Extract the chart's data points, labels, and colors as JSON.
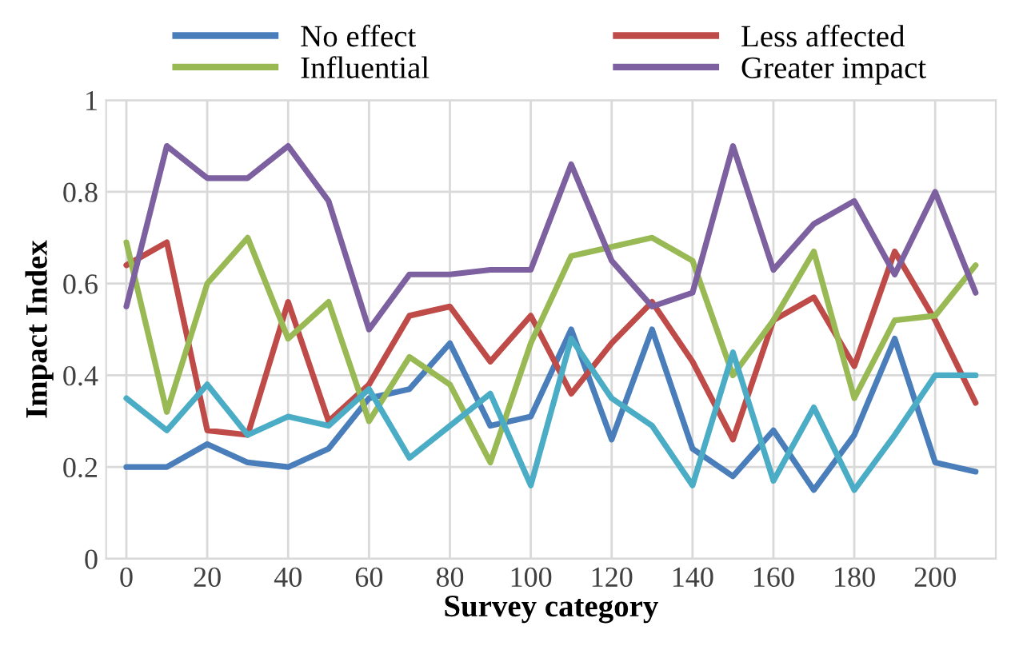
{
  "chart_data": {
    "type": "line",
    "xlabel": "Survey category",
    "ylabel": "Impact Index",
    "x": [
      0,
      10,
      20,
      30,
      40,
      50,
      60,
      70,
      80,
      90,
      100,
      110,
      120,
      130,
      140,
      150,
      160,
      170,
      180,
      190,
      200,
      210
    ],
    "series": [
      {
        "name": "No effect",
        "color": "#4a7ebb",
        "values": [
          0.2,
          0.2,
          0.25,
          0.21,
          0.2,
          0.24,
          0.35,
          0.37,
          0.47,
          0.29,
          0.31,
          0.5,
          0.26,
          0.5,
          0.24,
          0.18,
          0.28,
          0.15,
          0.27,
          0.48,
          0.21,
          0.19
        ]
      },
      {
        "name": "Less affected",
        "color": "#be4b48",
        "values": [
          0.64,
          0.69,
          0.28,
          0.27,
          0.56,
          0.3,
          0.38,
          0.53,
          0.55,
          0.43,
          0.53,
          0.36,
          0.47,
          0.56,
          0.43,
          0.26,
          0.52,
          0.57,
          0.42,
          0.67,
          0.52,
          0.34
        ]
      },
      {
        "name": "Influential",
        "color": "#98b954",
        "values": [
          0.69,
          0.32,
          0.6,
          0.7,
          0.48,
          0.56,
          0.3,
          0.44,
          0.38,
          0.21,
          0.47,
          0.66,
          0.68,
          0.7,
          0.65,
          0.4,
          0.52,
          0.67,
          0.35,
          0.52,
          0.53,
          0.64
        ]
      },
      {
        "name": "Greater impact",
        "color": "#7d60a0",
        "values": [
          0.55,
          0.9,
          0.83,
          0.83,
          0.9,
          0.78,
          0.5,
          0.62,
          0.62,
          0.63,
          0.63,
          0.86,
          0.65,
          0.55,
          0.58,
          0.9,
          0.63,
          0.73,
          0.78,
          0.62,
          0.8,
          0.58
        ]
      },
      {
        "color": "#4bacc6",
        "values": [
          0.35,
          0.28,
          0.38,
          0.27,
          0.31,
          0.29,
          0.37,
          0.22,
          0.29,
          0.36,
          0.16,
          0.48,
          0.35,
          0.29,
          0.16,
          0.45,
          0.17,
          0.33,
          0.15,
          0.27,
          0.4,
          0.4
        ]
      }
    ],
    "xlim": [
      -5,
      215
    ],
    "xticks": [
      0,
      20,
      40,
      60,
      80,
      100,
      120,
      140,
      160,
      180,
      200
    ],
    "ylim": [
      0,
      1
    ],
    "yticks": [
      0,
      0.2,
      0.4,
      0.6,
      0.8,
      1
    ],
    "grid": true,
    "legend": "top",
    "marker": "none",
    "line_style": "solid"
  }
}
